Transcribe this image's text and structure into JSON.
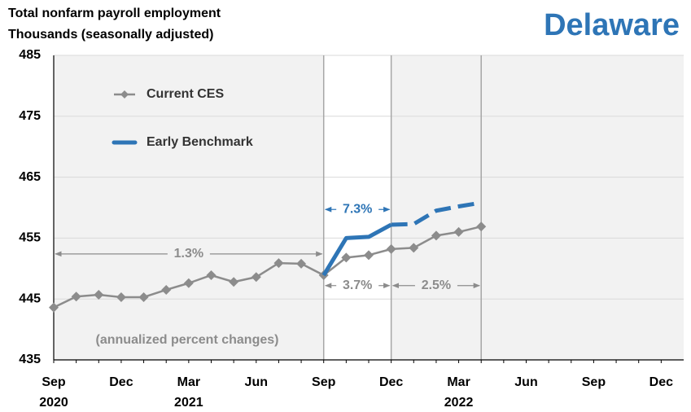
{
  "chart_data": {
    "type": "line",
    "title": "Total nonfarm payroll employment",
    "subtitle": "Thousands  (seasonally adjusted)",
    "region": "Delaware",
    "note": "(annualized  percent changes)",
    "categories": [
      "Sep",
      null,
      null,
      "Dec",
      null,
      null,
      "Mar",
      null,
      null,
      "Jun",
      null,
      null,
      "Sep",
      null,
      null,
      "Dec",
      null,
      null,
      "Mar",
      null,
      null,
      "Jun",
      null,
      null,
      "Sep",
      null,
      null,
      "Dec"
    ],
    "year_labels": [
      {
        "index": 0,
        "label": "2020"
      },
      {
        "index": 6,
        "label": "2021"
      },
      {
        "index": 18,
        "label": "2022"
      }
    ],
    "series": [
      {
        "name": "Current CES",
        "color": "#8c8c8c",
        "marker": "diamond",
        "values": [
          443.6,
          445.4,
          445.7,
          445.3,
          445.3,
          446.5,
          447.6,
          448.9,
          447.8,
          448.6,
          450.9,
          450.8,
          448.9,
          451.8,
          452.2,
          453.2,
          453.4,
          455.4,
          456.0,
          456.9,
          null,
          null,
          null,
          null,
          null,
          null,
          null,
          null
        ]
      },
      {
        "name": "Early Benchmark",
        "color": "#2e75b6",
        "dashed_from": 15,
        "values": [
          null,
          null,
          null,
          null,
          null,
          null,
          null,
          null,
          null,
          null,
          null,
          null,
          448.9,
          455.0,
          455.2,
          457.2,
          457.3,
          459.5,
          460.2,
          460.8,
          null,
          null,
          null,
          null,
          null,
          null,
          null,
          null
        ]
      }
    ],
    "ylim": [
      435,
      485
    ],
    "yticks": [
      435,
      445,
      455,
      465,
      475,
      485
    ],
    "grid": true,
    "highlight": [
      12,
      15
    ],
    "vlines": [
      12,
      15,
      19
    ],
    "annotations": [
      {
        "text": "1.3%",
        "from": 0,
        "to": 12,
        "y": 452.4,
        "color": "#8c8c8c"
      },
      {
        "text": "7.3%",
        "from": 12,
        "to": 15,
        "y": 459.7,
        "color": "#2e75b6"
      },
      {
        "text": "3.7%",
        "from": 12,
        "to": 15,
        "y": 447.2,
        "color": "#8c8c8c"
      },
      {
        "text": "2.5%",
        "from": 15,
        "to": 19,
        "y": 447.2,
        "color": "#8c8c8c"
      }
    ]
  }
}
